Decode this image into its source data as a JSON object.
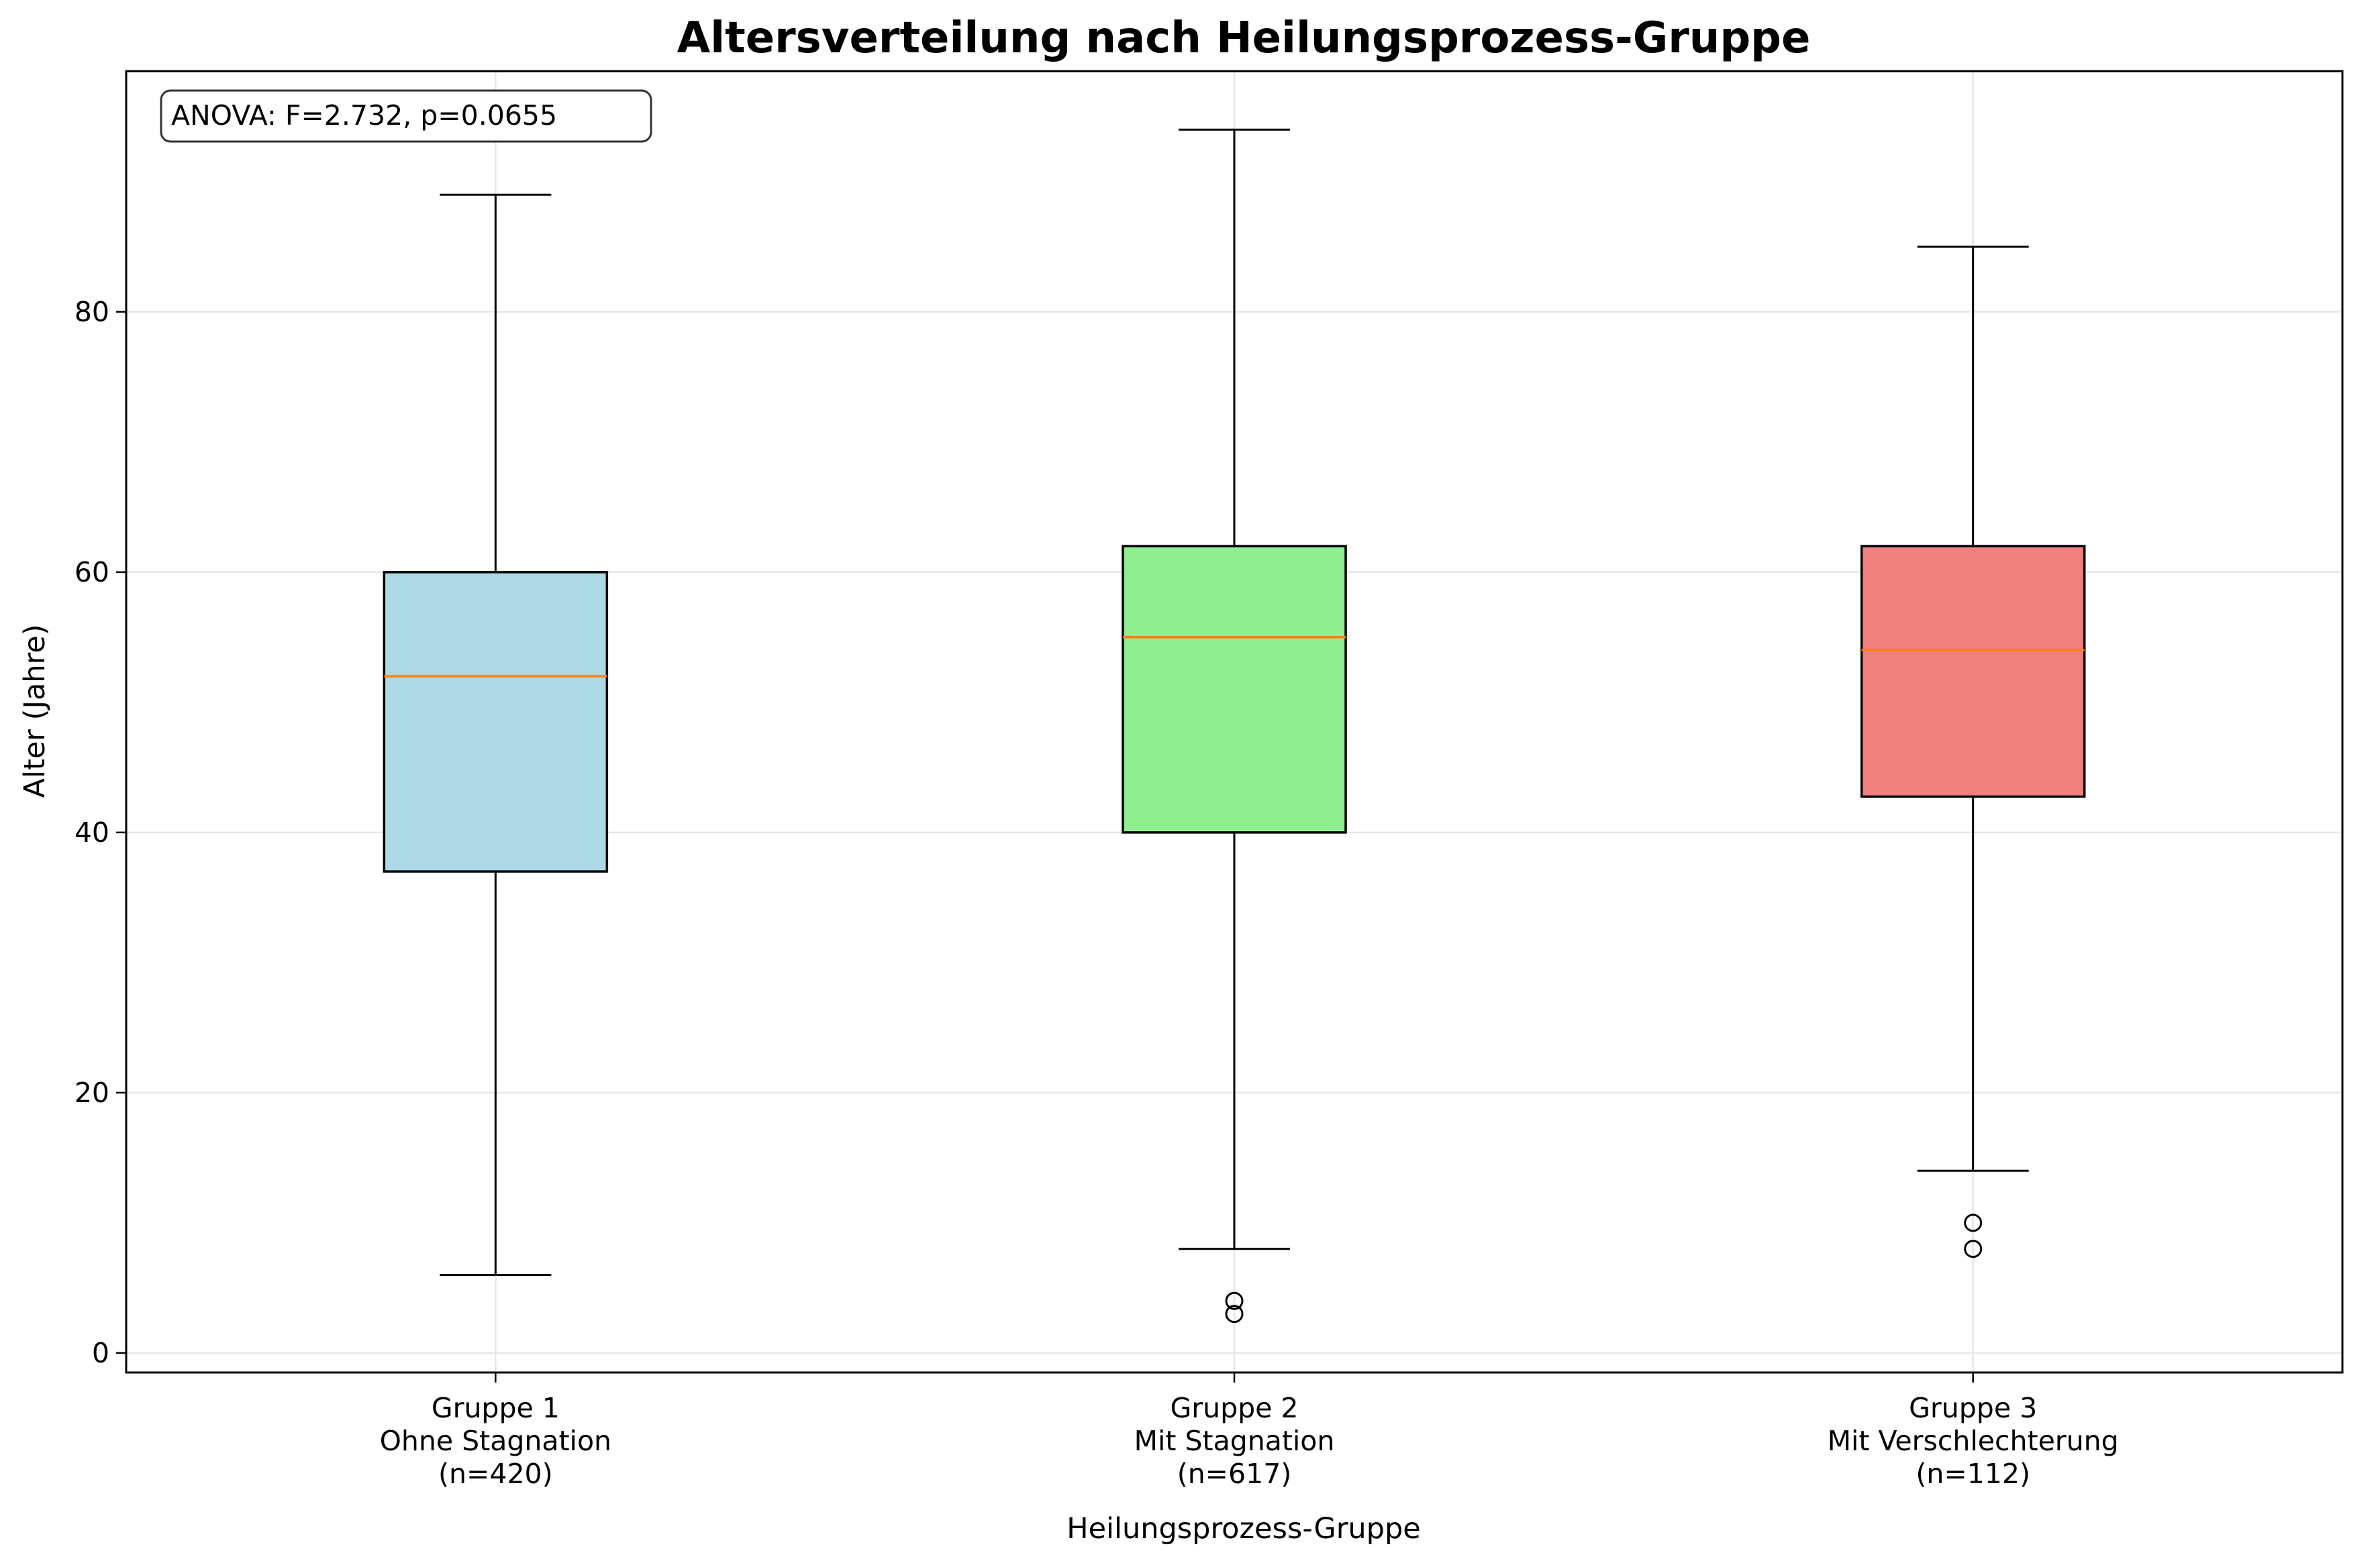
{
  "chart_data": {
    "type": "box",
    "title": "Altersverteilung nach Heilungsprozess-Gruppe",
    "xlabel": "Heilungsprozess-Gruppe",
    "ylabel": "Alter (Jahre)",
    "ylim": [
      -1.5,
      98.5
    ],
    "yticks": [
      0,
      20,
      40,
      60,
      80
    ],
    "grid": true,
    "annotation": "ANOVA: F=2.732, p=0.0655",
    "groups": [
      {
        "label_lines": [
          "Gruppe 1",
          "Ohne Stagnation",
          "(n=420)"
        ],
        "whisker_low": 6,
        "q1": 37,
        "median": 52,
        "q3": 60,
        "whisker_high": 89,
        "outliers": [],
        "color": "#add8e6"
      },
      {
        "label_lines": [
          "Gruppe 2",
          "Mit Stagnation",
          "(n=617)"
        ],
        "whisker_low": 8,
        "q1": 40,
        "median": 55,
        "q3": 62,
        "whisker_high": 94,
        "outliers": [
          3,
          4
        ],
        "color": "#90ee90"
      },
      {
        "label_lines": [
          "Gruppe 3",
          "Mit Verschlechterung",
          "(n=112)"
        ],
        "whisker_low": 14,
        "q1": 42.75,
        "median": 54,
        "q3": 62,
        "whisker_high": 85,
        "outliers": [
          8,
          10
        ],
        "color": "#f08080"
      }
    ],
    "median_color": "#ff7f0e"
  }
}
